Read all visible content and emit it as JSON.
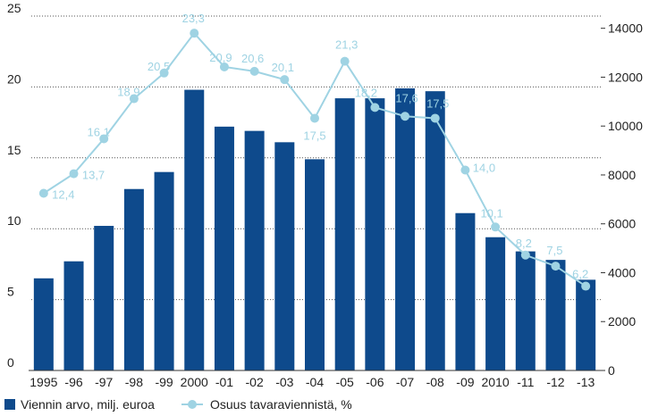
{
  "chart_data": {
    "type": "bar+line",
    "categories": [
      "1995",
      "-96",
      "-97",
      "-98",
      "-99",
      "2000",
      "-01",
      "-02",
      "-03",
      "-04",
      "-05",
      "-06",
      "-07",
      "-08",
      "-09",
      "2010",
      "-11",
      "-12",
      "-13"
    ],
    "series": [
      {
        "name": "Viennin arvo, milj. euroa",
        "type": "bar",
        "axis": "left",
        "color": "#0e4a8c",
        "values": [
          6.5,
          7.7,
          10.2,
          12.8,
          14.0,
          19.8,
          17.2,
          16.9,
          16.1,
          14.9,
          19.2,
          19.2,
          19.9,
          19.7,
          11.1,
          9.4,
          8.4,
          7.8,
          6.4
        ]
      },
      {
        "name": "Osuus tavaraviennistä, %",
        "type": "line",
        "axis": "right",
        "color": "#9fd3e3",
        "values": [
          7250,
          8050,
          9480,
          11120,
          12170,
          13800,
          12420,
          12240,
          11900,
          10320,
          12650,
          10760,
          10400,
          10320,
          8200,
          5870,
          4720,
          4270,
          3450
        ],
        "labels": [
          "12,4",
          "13,7",
          "16,1",
          "18,9",
          "20,5",
          "23,3",
          "20,9",
          "20,6",
          "20,1",
          "17,5",
          "21,3",
          "18,2",
          "17,6",
          "17,5",
          "14,0",
          "10,1",
          "8,2",
          "7,5",
          "6,2"
        ]
      }
    ],
    "y_left": {
      "ticks": [
        "0",
        "5",
        "10",
        "15",
        "20",
        "25"
      ],
      "ylim": [
        0,
        25
      ]
    },
    "y_right": {
      "ticks": [
        "0",
        "2000",
        "4000",
        "6000",
        "8000",
        "10000",
        "12000",
        "14000"
      ],
      "ylim": [
        0,
        14500
      ]
    },
    "grid": "horizontal-dotted",
    "legend": "bottom-left"
  }
}
